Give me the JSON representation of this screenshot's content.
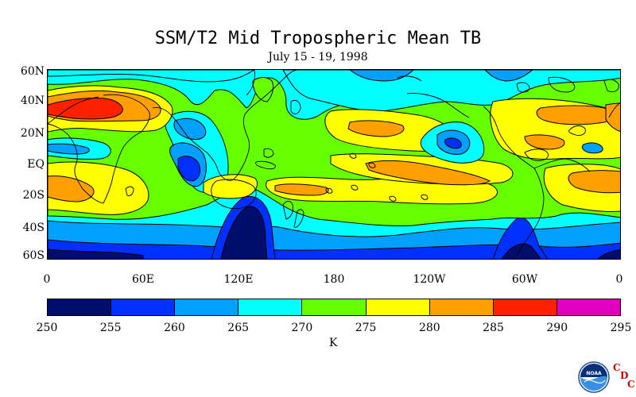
{
  "title": "SSM/T2 Mid Tropospheric Mean TB",
  "subtitle": "July 15 - 19, 1998",
  "lat_labels": [
    "60N",
    "40N",
    "20N",
    "EQ",
    "20S",
    "40S",
    "60S"
  ],
  "lon_labels": [
    "0",
    "60E",
    "120E",
    "180",
    "120W",
    "60W",
    "0"
  ],
  "colorbar": {
    "labels": [
      "250",
      "255",
      "260",
      "265",
      "270",
      "275",
      "280",
      "285",
      "290",
      "295"
    ],
    "colors": [
      "#000d6b",
      "#0030ff",
      "#00a0ff",
      "#00ffff",
      "#66ff00",
      "#ffff00",
      "#ffa000",
      "#ff2000",
      "#e000c0"
    ],
    "units": "K"
  },
  "logo": {
    "agency_text": "NOAA",
    "lab_letters": [
      "C",
      "D",
      "C"
    ]
  }
}
